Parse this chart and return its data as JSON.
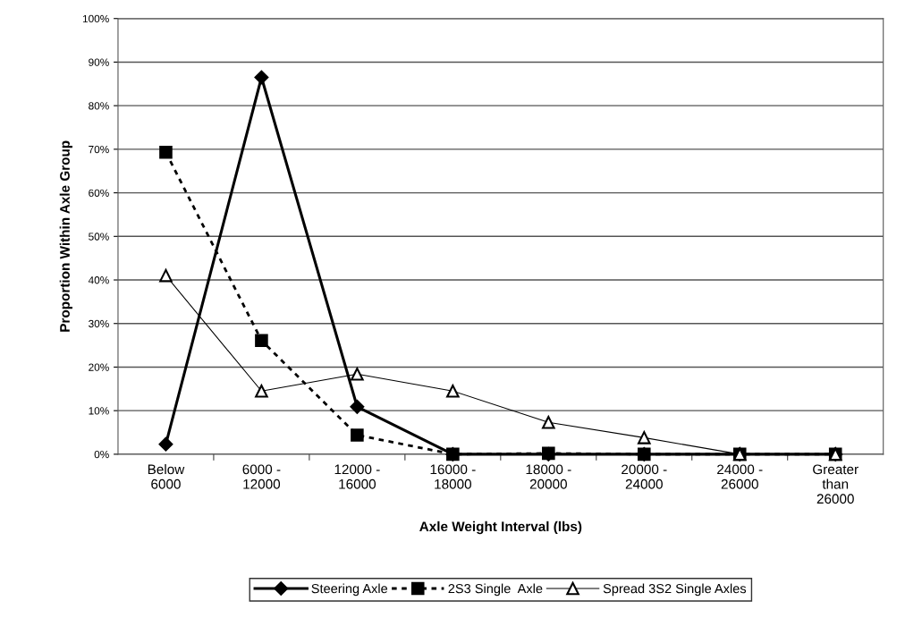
{
  "chart_data": {
    "type": "line",
    "xlabel": "Axle Weight Interval (lbs)",
    "ylabel": "Proportion Within Axle Group",
    "categories": [
      "Below\n6000",
      "6000 -\n12000",
      "12000 -\n16000",
      "16000 -\n18000",
      "18000 -\n20000",
      "20000 -\n24000",
      "24000 -\n26000",
      "Greater\nthan\n26000"
    ],
    "series": [
      {
        "name": "Steering Axle",
        "color": "#000000",
        "marker": "diamond",
        "line_style": "solid",
        "values": [
          2.3,
          86.5,
          10.9,
          0,
          0,
          0,
          0,
          0
        ]
      },
      {
        "name": "2S3 Single  Axle",
        "color": "#000000",
        "marker": "square",
        "line_style": "dashed",
        "values": [
          69.3,
          26.1,
          4.4,
          0,
          0.2,
          0,
          0,
          0
        ]
      },
      {
        "name": "Spread 3S2 Single Axles",
        "color": "#000000",
        "marker": "triangle",
        "line_style": "solid",
        "values": [
          41,
          14.5,
          18.4,
          14.5,
          7.3,
          3.8,
          0,
          0
        ]
      }
    ],
    "ylim": [
      0,
      100
    ],
    "yticks": [
      {
        "value": 0,
        "label": "0%"
      },
      {
        "value": 10,
        "label": "10%"
      },
      {
        "value": 20,
        "label": "20%"
      },
      {
        "value": 30,
        "label": "30%"
      },
      {
        "value": 40,
        "label": "40%"
      },
      {
        "value": 50,
        "label": "50%"
      },
      {
        "value": 60,
        "label": "60%"
      },
      {
        "value": 70,
        "label": "70%"
      },
      {
        "value": 80,
        "label": "80%"
      },
      {
        "value": 90,
        "label": "90%"
      },
      {
        "value": 100,
        "label": "100%"
      }
    ],
    "grid": "y",
    "legend": "bottom"
  }
}
